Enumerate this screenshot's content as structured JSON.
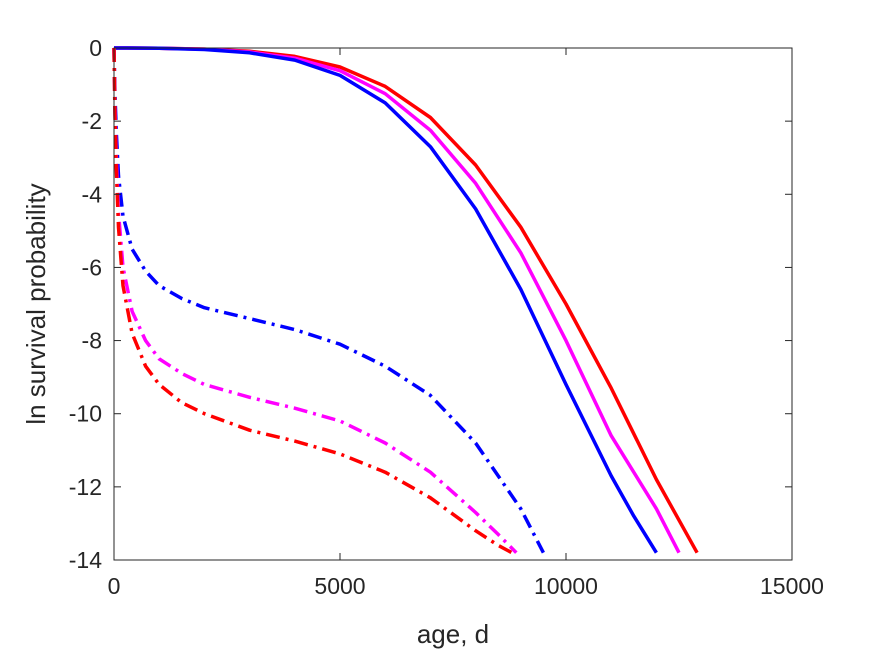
{
  "chart_data": {
    "type": "line",
    "title": "",
    "xlabel": "age, d",
    "ylabel": "ln survival probability",
    "xlim": [
      0,
      15000
    ],
    "ylim": [
      -14,
      0
    ],
    "xticks": [
      0,
      5000,
      10000,
      15000
    ],
    "yticks": [
      -14,
      -12,
      -10,
      -8,
      -6,
      -4,
      -2,
      0
    ],
    "xtick_labels": [
      "0",
      "5000",
      "10000",
      "15000"
    ],
    "ytick_labels": [
      "-14",
      "-12",
      "-10",
      "-8",
      "-6",
      "-4",
      "-2",
      "0"
    ],
    "grid": false,
    "legend": "none",
    "series": [
      {
        "color": "#ff0000",
        "style": "solid",
        "x": [
          0,
          1000,
          2000,
          3000,
          4000,
          5000,
          6000,
          7000,
          8000,
          9000,
          10000,
          11000,
          12000,
          12900
        ],
        "y": [
          0,
          -0.005,
          -0.03,
          -0.09,
          -0.23,
          -0.52,
          -1.05,
          -1.9,
          -3.2,
          -4.9,
          -7.0,
          -9.3,
          -11.8,
          -13.8
        ]
      },
      {
        "color": "#ff00ff",
        "style": "solid",
        "x": [
          0,
          1000,
          2000,
          3000,
          4000,
          5000,
          6000,
          7000,
          8000,
          9000,
          10000,
          11000,
          12000,
          12500
        ],
        "y": [
          0,
          -0.005,
          -0.03,
          -0.11,
          -0.28,
          -0.62,
          -1.25,
          -2.25,
          -3.7,
          -5.6,
          -8.0,
          -10.6,
          -12.6,
          -13.8
        ]
      },
      {
        "color": "#0000ff",
        "style": "solid",
        "x": [
          0,
          1000,
          2000,
          3000,
          4000,
          5000,
          6000,
          7000,
          8000,
          9000,
          10000,
          11000,
          11500,
          12000
        ],
        "y": [
          0,
          -0.005,
          -0.04,
          -0.13,
          -0.33,
          -0.75,
          -1.5,
          -2.7,
          -4.4,
          -6.6,
          -9.2,
          -11.7,
          -12.8,
          -13.8
        ]
      },
      {
        "color": "#0000ff",
        "style": "dashdot",
        "x": [
          0,
          20,
          50,
          100,
          200,
          400,
          700,
          1000,
          1500,
          2000,
          3000,
          4000,
          5000,
          6000,
          7000,
          8000,
          9000,
          9500
        ],
        "y": [
          0,
          -1.2,
          -2.3,
          -3.5,
          -4.6,
          -5.5,
          -6.1,
          -6.5,
          -6.85,
          -7.1,
          -7.4,
          -7.7,
          -8.1,
          -8.7,
          -9.5,
          -10.8,
          -12.6,
          -13.8
        ]
      },
      {
        "color": "#ff00ff",
        "style": "dashdot",
        "x": [
          0,
          20,
          50,
          100,
          200,
          400,
          700,
          1000,
          1500,
          2000,
          3000,
          4000,
          5000,
          6000,
          7000,
          8000,
          8500,
          8900
        ],
        "y": [
          0,
          -1.6,
          -3.0,
          -4.5,
          -6.0,
          -7.2,
          -8.0,
          -8.5,
          -8.9,
          -9.2,
          -9.55,
          -9.85,
          -10.2,
          -10.8,
          -11.6,
          -12.7,
          -13.3,
          -13.8
        ]
      },
      {
        "color": "#ff0000",
        "style": "dashdot",
        "x": [
          0,
          20,
          50,
          100,
          200,
          400,
          700,
          1000,
          1500,
          2000,
          3000,
          4000,
          5000,
          6000,
          7000,
          8000,
          8500,
          8800
        ],
        "y": [
          0,
          -1.8,
          -3.3,
          -4.9,
          -6.5,
          -7.8,
          -8.7,
          -9.2,
          -9.7,
          -10.0,
          -10.45,
          -10.75,
          -11.1,
          -11.6,
          -12.3,
          -13.2,
          -13.6,
          -13.8
        ]
      }
    ]
  }
}
